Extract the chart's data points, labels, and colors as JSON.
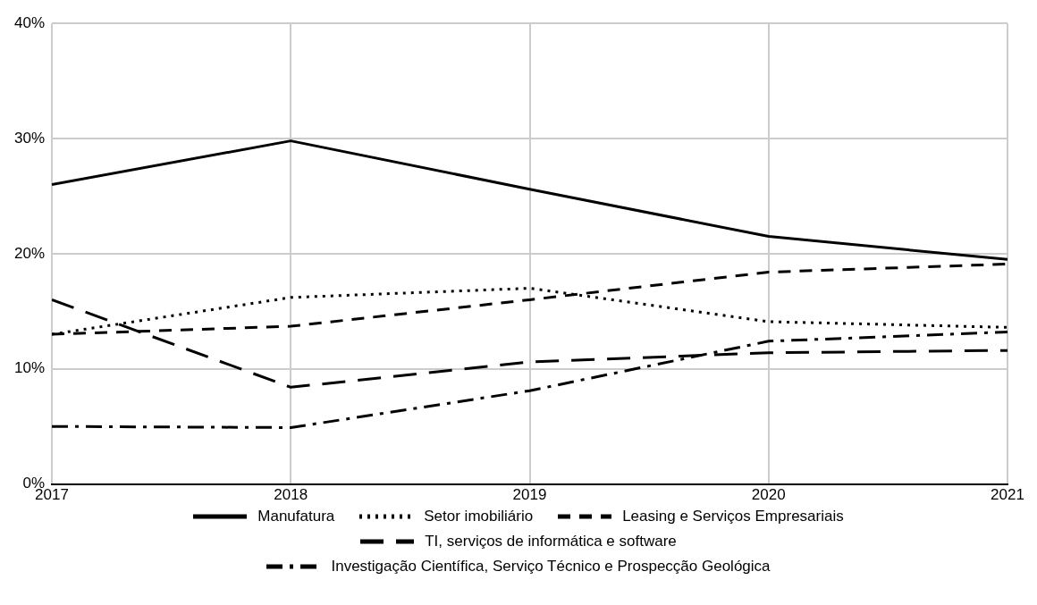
{
  "chart_data": {
    "type": "line",
    "x": [
      2017,
      2018,
      2019,
      2020,
      2021
    ],
    "series": [
      {
        "name": "Manufatura",
        "color": "#000000",
        "line_style": "solid",
        "values": [
          26,
          29.8,
          25.6,
          21.5,
          19.5
        ]
      },
      {
        "name": "Setor imobiliário",
        "color": "#000000",
        "line_style": "dotted",
        "values": [
          13,
          16.2,
          17,
          14.1,
          13.6
        ]
      },
      {
        "name": "Leasing e Serviços Empresariais",
        "color": "#000000",
        "line_style": "dashed",
        "values": [
          13,
          13.7,
          16,
          18.4,
          19.1
        ]
      },
      {
        "name": "TI, serviços de informática e software",
        "color": "#000000",
        "line_style": "longdash",
        "values": [
          16,
          8.4,
          10.6,
          11.4,
          11.6
        ]
      },
      {
        "name": "Investigação Científica, Serviço Técnico e Prospecção Geológica",
        "color": "#000000",
        "line_style": "dashdot",
        "values": [
          5,
          4.9,
          8.1,
          12.4,
          13.2
        ]
      }
    ],
    "xlim": [
      2017,
      2021
    ],
    "xticks": [
      2017,
      2018,
      2019,
      2020,
      2021
    ],
    "ylim": [
      0,
      40
    ],
    "yticks": [
      {
        "value": 0,
        "label": "0%"
      },
      {
        "value": 10,
        "label": "10%"
      },
      {
        "value": 20,
        "label": "20%"
      },
      {
        "value": 30,
        "label": "30%"
      },
      {
        "value": 40,
        "label": "40%"
      }
    ],
    "grid": true,
    "legend": "bottom",
    "marker": "none"
  }
}
